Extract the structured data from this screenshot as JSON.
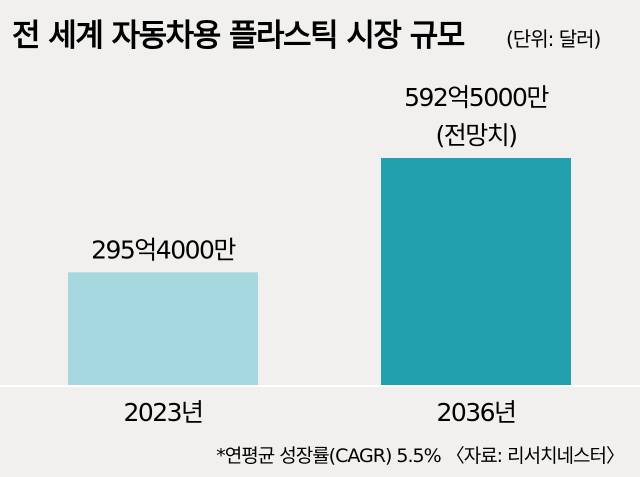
{
  "chart_data": {
    "type": "bar",
    "title": "전 세계 자동차용 플라스틱 시장 규모",
    "unit_label": "(단위: 달러)",
    "categories": [
      "2023년",
      "2036년"
    ],
    "values": [
      29540000000,
      59250000000
    ],
    "value_labels": [
      "295억4000만",
      "592억5000만"
    ],
    "value_sublabels": [
      "",
      "(전망치)"
    ],
    "colors": [
      "#a6d8df",
      "#23a0ae"
    ],
    "ylim": [
      0,
      59250000000
    ],
    "grid": false,
    "footnote": "*연평균 성장률(CAGR) 5.5% 〈자료: 리서치네스터〉"
  }
}
